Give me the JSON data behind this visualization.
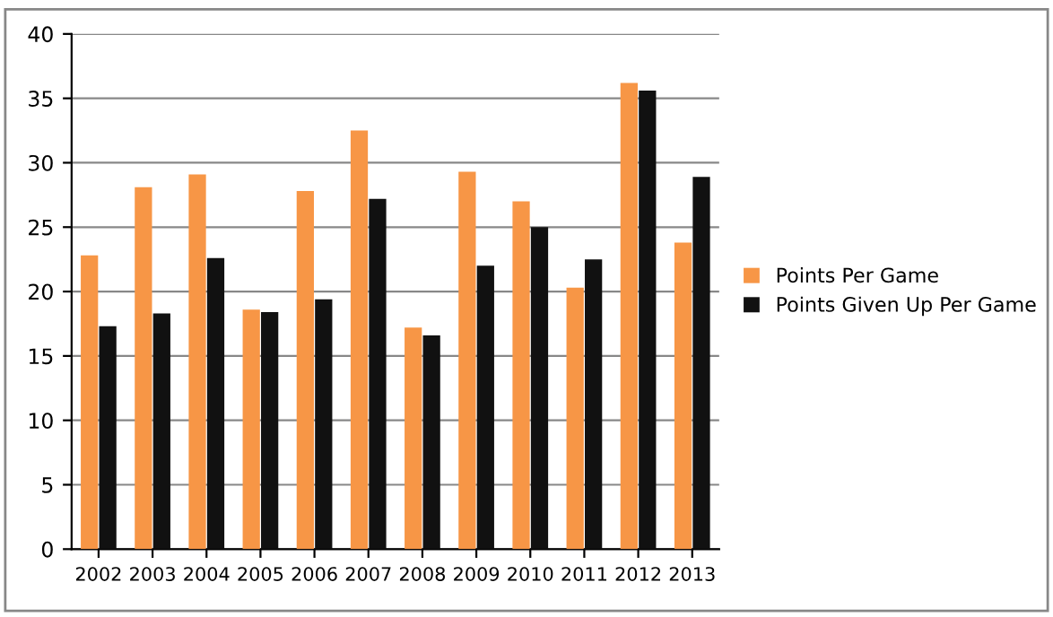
{
  "chart_data": {
    "type": "bar",
    "categories": [
      "2002",
      "2003",
      "2004",
      "2005",
      "2006",
      "2007",
      "2008",
      "2009",
      "2010",
      "2011",
      "2012",
      "2013"
    ],
    "series": [
      {
        "name": "Points Per Game",
        "color": "#f79646",
        "values": [
          22.8,
          28.1,
          29.1,
          18.6,
          27.8,
          32.5,
          17.2,
          29.3,
          27.0,
          20.3,
          36.2,
          23.8
        ]
      },
      {
        "name": "Points Given Up Per Game",
        "color": "#111111",
        "values": [
          17.3,
          18.3,
          22.6,
          18.4,
          19.4,
          27.2,
          16.6,
          22.0,
          25.0,
          22.5,
          35.6,
          28.9
        ]
      }
    ],
    "ylim": [
      0,
      40
    ],
    "yticks": [
      0,
      5,
      10,
      15,
      20,
      25,
      30,
      35,
      40
    ],
    "grid": "y",
    "legend": "right"
  }
}
